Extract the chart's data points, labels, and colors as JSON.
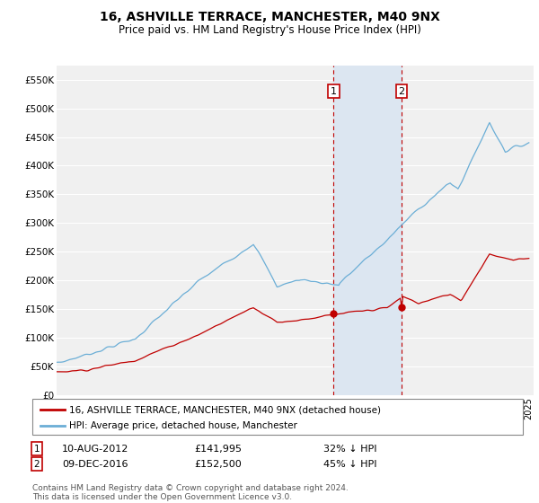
{
  "title": "16, ASHVILLE TERRACE, MANCHESTER, M40 9NX",
  "subtitle": "Price paid vs. HM Land Registry's House Price Index (HPI)",
  "ylabel_ticks": [
    "£0",
    "£50K",
    "£100K",
    "£150K",
    "£200K",
    "£250K",
    "£300K",
    "£350K",
    "£400K",
    "£450K",
    "£500K",
    "£550K"
  ],
  "ytick_values": [
    0,
    50000,
    100000,
    150000,
    200000,
    250000,
    300000,
    350000,
    400000,
    450000,
    500000,
    550000
  ],
  "ylim": [
    0,
    575000
  ],
  "x_start_year": 1995,
  "x_end_year": 2025,
  "hpi_color": "#6baed6",
  "price_color": "#c00000",
  "transaction1_date": 2012.6,
  "transaction1_price": 141995,
  "transaction1_label": "1",
  "transaction2_date": 2016.92,
  "transaction2_price": 152500,
  "transaction2_label": "2",
  "annotation1_date": "10-AUG-2012",
  "annotation1_price": "£141,995",
  "annotation1_pct": "32% ↓ HPI",
  "annotation2_date": "09-DEC-2016",
  "annotation2_price": "£152,500",
  "annotation2_pct": "45% ↓ HPI",
  "legend_line1": "16, ASHVILLE TERRACE, MANCHESTER, M40 9NX (detached house)",
  "legend_line2": "HPI: Average price, detached house, Manchester",
  "footer": "Contains HM Land Registry data © Crown copyright and database right 2024.\nThis data is licensed under the Open Government Licence v3.0.",
  "bg_color": "#ffffff",
  "plot_bg_color": "#f0f0f0",
  "shade_color": "#dce6f1",
  "grid_color": "#ffffff"
}
